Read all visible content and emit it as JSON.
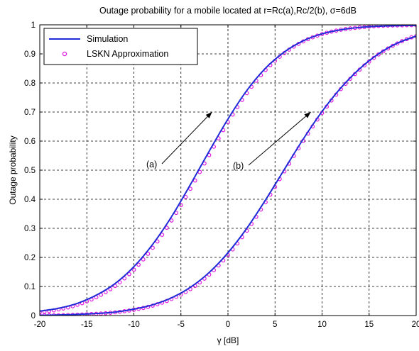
{
  "chart_data": {
    "type": "line",
    "title": "Outage probability for a mobile located at r=Rc(a),Rc/2(b), σ=6dB",
    "xlabel": "γ [dB]",
    "ylabel": "Outage probability",
    "xlim": [
      -20,
      20
    ],
    "ylim": [
      0,
      1
    ],
    "xticks": [
      "-20",
      "-15",
      "-10",
      "-5",
      "0",
      "5",
      "10",
      "15",
      "20"
    ],
    "yticks": [
      "0",
      "0.1",
      "0.2",
      "0.3",
      "0.4",
      "0.5",
      "0.6",
      "0.7",
      "0.8",
      "0.9",
      "1"
    ],
    "grid": true,
    "legend_position": "top-left",
    "colors": {
      "simulation": "#1f2bd6",
      "approximation": "#e11be0"
    },
    "series": [
      {
        "name": "Simulation",
        "style": "line",
        "curves": [
          {
            "label": "(a)",
            "x": [
              -20,
              -18,
              -16,
              -14,
              -12,
              -10,
              -8,
              -6,
              -4,
              -2,
              0,
              2,
              4,
              6,
              8,
              10,
              12,
              14,
              16,
              18,
              20
            ],
            "y": [
              0.015,
              0.025,
              0.042,
              0.07,
              0.11,
              0.168,
              0.245,
              0.34,
              0.45,
              0.565,
              0.676,
              0.774,
              0.851,
              0.907,
              0.945,
              0.969,
              0.983,
              0.991,
              0.995,
              0.997,
              0.998
            ]
          },
          {
            "label": "(b)",
            "x": [
              -20,
              -18,
              -16,
              -14,
              -12,
              -10,
              -8,
              -6,
              -4,
              -2,
              0,
              2,
              4,
              6,
              8,
              10,
              12,
              14,
              16,
              18,
              20
            ],
            "y": [
              0.001,
              0.002,
              0.004,
              0.007,
              0.012,
              0.022,
              0.037,
              0.061,
              0.097,
              0.148,
              0.216,
              0.3,
              0.398,
              0.503,
              0.607,
              0.702,
              0.783,
              0.849,
              0.9,
              0.937,
              0.961
            ]
          }
        ]
      },
      {
        "name": "LSKN Approximation",
        "style": "markers",
        "curves": [
          {
            "label": "(a)",
            "x": [
              -20,
              -18,
              -16,
              -14,
              -12,
              -10,
              -8,
              -6,
              -4,
              -2,
              0,
              2,
              4,
              6,
              8,
              10,
              12,
              14,
              16,
              18,
              20
            ],
            "y": [
              0.012,
              0.021,
              0.037,
              0.063,
              0.102,
              0.158,
              0.233,
              0.327,
              0.436,
              0.552,
              0.665,
              0.765,
              0.845,
              0.903,
              0.943,
              0.968,
              0.983,
              0.991,
              0.996,
              0.998,
              0.999
            ]
          },
          {
            "label": "(b)",
            "x": [
              -20,
              -18,
              -16,
              -14,
              -12,
              -10,
              -8,
              -6,
              -4,
              -2,
              0,
              2,
              4,
              6,
              8,
              10,
              12,
              14,
              16,
              18,
              20
            ],
            "y": [
              0.001,
              0.001,
              0.003,
              0.006,
              0.011,
              0.02,
              0.034,
              0.057,
              0.091,
              0.141,
              0.208,
              0.292,
              0.39,
              0.496,
              0.601,
              0.697,
              0.779,
              0.846,
              0.898,
              0.936,
              0.961
            ]
          }
        ]
      }
    ],
    "annotations": [
      {
        "text": "(a)",
        "arrow_to": [
          -1.7,
          0.7
        ]
      },
      {
        "text": "(b)",
        "arrow_to": [
          8.8,
          0.7
        ]
      }
    ]
  }
}
